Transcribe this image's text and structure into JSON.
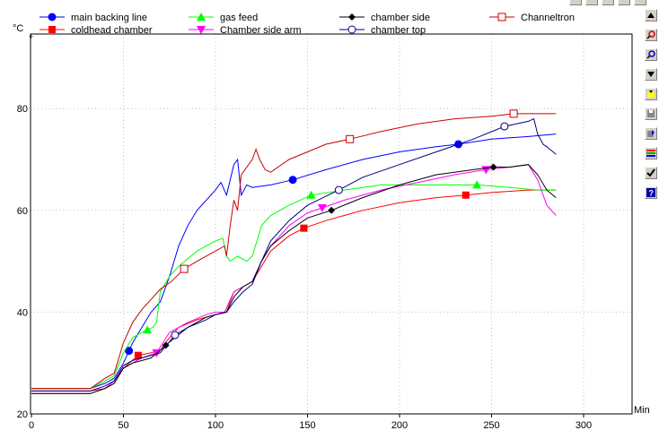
{
  "chart_data": {
    "type": "line",
    "ylabel": "°C",
    "xlabel": "Min",
    "xlim": [
      0,
      320
    ],
    "ylim": [
      20,
      94
    ],
    "xticks": [
      0,
      50,
      100,
      150,
      200,
      250,
      300
    ],
    "yticks": [
      20,
      40,
      60,
      80
    ],
    "grid": true,
    "legend_position": "top",
    "series": [
      {
        "name": "main backing line",
        "color": "#0000ff",
        "marker": "circle-filled",
        "markers_x": [
          53,
          142,
          232
        ],
        "points": [
          [
            0,
            25
          ],
          [
            32,
            25
          ],
          [
            40,
            26
          ],
          [
            45,
            27
          ],
          [
            50,
            30
          ],
          [
            55,
            34
          ],
          [
            60,
            37
          ],
          [
            65,
            40
          ],
          [
            70,
            42
          ],
          [
            75,
            47
          ],
          [
            80,
            53
          ],
          [
            85,
            57
          ],
          [
            90,
            60
          ],
          [
            95,
            62
          ],
          [
            100,
            64
          ],
          [
            103,
            65.5
          ],
          [
            106,
            63
          ],
          [
            110,
            69
          ],
          [
            112,
            70
          ],
          [
            114,
            63
          ],
          [
            117,
            65
          ],
          [
            120,
            64.5
          ],
          [
            130,
            65
          ],
          [
            142,
            66
          ],
          [
            160,
            68
          ],
          [
            180,
            70
          ],
          [
            200,
            71.5
          ],
          [
            220,
            72.5
          ],
          [
            232,
            73
          ],
          [
            250,
            74
          ],
          [
            270,
            74.5
          ],
          [
            285,
            75
          ]
        ]
      },
      {
        "name": "coldhead chamber",
        "color": "#ff0000",
        "marker": "square-filled",
        "markers_x": [
          58,
          148,
          236
        ],
        "points": [
          [
            0,
            24.5
          ],
          [
            32,
            24.5
          ],
          [
            40,
            25
          ],
          [
            45,
            26
          ],
          [
            50,
            29
          ],
          [
            58,
            31.5
          ],
          [
            65,
            32
          ],
          [
            70,
            32.5
          ],
          [
            75,
            35
          ],
          [
            80,
            37
          ],
          [
            90,
            38.5
          ],
          [
            100,
            39.5
          ],
          [
            105,
            40
          ],
          [
            110,
            44
          ],
          [
            115,
            45
          ],
          [
            120,
            46
          ],
          [
            125,
            49
          ],
          [
            130,
            52
          ],
          [
            140,
            55
          ],
          [
            148,
            56.5
          ],
          [
            160,
            58
          ],
          [
            180,
            60
          ],
          [
            200,
            61.5
          ],
          [
            220,
            62.5
          ],
          [
            236,
            63
          ],
          [
            250,
            63.5
          ],
          [
            270,
            64
          ],
          [
            285,
            64
          ]
        ]
      },
      {
        "name": "gas feed",
        "color": "#00ff00",
        "marker": "triangle-up-filled",
        "markers_x": [
          63,
          152,
          242
        ],
        "points": [
          [
            0,
            25
          ],
          [
            32,
            25
          ],
          [
            40,
            26.5
          ],
          [
            45,
            27.5
          ],
          [
            50,
            32
          ],
          [
            55,
            35
          ],
          [
            60,
            36
          ],
          [
            63,
            36.5
          ],
          [
            66,
            37
          ],
          [
            68,
            38
          ],
          [
            70,
            44
          ],
          [
            75,
            47
          ],
          [
            80,
            49
          ],
          [
            90,
            52
          ],
          [
            100,
            54
          ],
          [
            104,
            54.5
          ],
          [
            106,
            51
          ],
          [
            108,
            50
          ],
          [
            112,
            51
          ],
          [
            117,
            50
          ],
          [
            120,
            51
          ],
          [
            125,
            57
          ],
          [
            130,
            59
          ],
          [
            140,
            61
          ],
          [
            152,
            63
          ],
          [
            170,
            64
          ],
          [
            190,
            65
          ],
          [
            210,
            65
          ],
          [
            230,
            65
          ],
          [
            242,
            65
          ],
          [
            260,
            64.5
          ],
          [
            275,
            64
          ],
          [
            285,
            64
          ]
        ]
      },
      {
        "name": "Chamber side arm",
        "color": "#ff00ff",
        "marker": "triangle-down-filled",
        "markers_x": [
          68,
          158,
          247
        ],
        "points": [
          [
            0,
            24
          ],
          [
            32,
            24
          ],
          [
            40,
            25
          ],
          [
            45,
            26.5
          ],
          [
            50,
            29
          ],
          [
            55,
            30
          ],
          [
            60,
            31
          ],
          [
            68,
            32
          ],
          [
            75,
            36
          ],
          [
            85,
            38
          ],
          [
            95,
            39.5
          ],
          [
            100,
            40
          ],
          [
            106,
            40
          ],
          [
            110,
            44
          ],
          [
            115,
            45
          ],
          [
            120,
            46
          ],
          [
            125,
            50
          ],
          [
            130,
            53
          ],
          [
            140,
            57
          ],
          [
            150,
            59.5
          ],
          [
            158,
            60.5
          ],
          [
            170,
            62
          ],
          [
            190,
            64
          ],
          [
            210,
            65.5
          ],
          [
            230,
            67
          ],
          [
            247,
            68
          ],
          [
            260,
            68.5
          ],
          [
            270,
            69
          ],
          [
            275,
            66
          ],
          [
            280,
            61
          ],
          [
            285,
            59
          ]
        ]
      },
      {
        "name": "chamber side",
        "color": "#000000",
        "marker": "diamond-filled",
        "markers_x": [
          73,
          163,
          251
        ],
        "points": [
          [
            0,
            24
          ],
          [
            32,
            24
          ],
          [
            40,
            25
          ],
          [
            45,
            26
          ],
          [
            50,
            29
          ],
          [
            55,
            30
          ],
          [
            60,
            30.5
          ],
          [
            65,
            31
          ],
          [
            70,
            32.5
          ],
          [
            73,
            33.5
          ],
          [
            78,
            35
          ],
          [
            85,
            37
          ],
          [
            95,
            39
          ],
          [
            100,
            39.5
          ],
          [
            106,
            40
          ],
          [
            110,
            43
          ],
          [
            115,
            45
          ],
          [
            120,
            46
          ],
          [
            125,
            50
          ],
          [
            130,
            53
          ],
          [
            140,
            56
          ],
          [
            150,
            58.5
          ],
          [
            163,
            60
          ],
          [
            180,
            62.5
          ],
          [
            200,
            65
          ],
          [
            220,
            67
          ],
          [
            240,
            68
          ],
          [
            251,
            68.5
          ],
          [
            260,
            68.5
          ],
          [
            270,
            69
          ],
          [
            275,
            67
          ],
          [
            280,
            64
          ],
          [
            285,
            62.5
          ]
        ]
      },
      {
        "name": "chamber top",
        "color": "#000080",
        "marker": "circle-open",
        "markers_x": [
          78,
          167,
          257
        ],
        "points": [
          [
            0,
            24.5
          ],
          [
            32,
            24.5
          ],
          [
            40,
            25.5
          ],
          [
            45,
            26.5
          ],
          [
            50,
            29.5
          ],
          [
            55,
            30.5
          ],
          [
            60,
            31
          ],
          [
            70,
            32
          ],
          [
            78,
            35.5
          ],
          [
            85,
            37
          ],
          [
            95,
            38.5
          ],
          [
            100,
            39.5
          ],
          [
            106,
            40
          ],
          [
            110,
            42
          ],
          [
            115,
            44
          ],
          [
            120,
            45.5
          ],
          [
            125,
            50
          ],
          [
            130,
            54
          ],
          [
            140,
            58
          ],
          [
            150,
            61
          ],
          [
            167,
            64
          ],
          [
            180,
            66.5
          ],
          [
            200,
            69
          ],
          [
            220,
            71.5
          ],
          [
            240,
            74
          ],
          [
            257,
            76.5
          ],
          [
            270,
            77.5
          ],
          [
            273,
            78
          ],
          [
            275,
            75
          ],
          [
            278,
            73
          ],
          [
            280,
            72.5
          ],
          [
            285,
            71
          ]
        ]
      },
      {
        "name": "Channeltron",
        "color": "#cc0000",
        "marker": "square-open",
        "markers_x": [
          83,
          173,
          262
        ],
        "points": [
          [
            0,
            25
          ],
          [
            32,
            25
          ],
          [
            40,
            27
          ],
          [
            45,
            28
          ],
          [
            50,
            34
          ],
          [
            55,
            38
          ],
          [
            60,
            40.5
          ],
          [
            65,
            42.5
          ],
          [
            70,
            44.5
          ],
          [
            76,
            46
          ],
          [
            83,
            48.5
          ],
          [
            90,
            50
          ],
          [
            100,
            52
          ],
          [
            105,
            53
          ],
          [
            106,
            51
          ],
          [
            108,
            57
          ],
          [
            110,
            62
          ],
          [
            112,
            60
          ],
          [
            114,
            67
          ],
          [
            116,
            68
          ],
          [
            120,
            70
          ],
          [
            122,
            72
          ],
          [
            124,
            70
          ],
          [
            127,
            68
          ],
          [
            130,
            67.5
          ],
          [
            140,
            70
          ],
          [
            160,
            73
          ],
          [
            173,
            74
          ],
          [
            190,
            75.5
          ],
          [
            210,
            77
          ],
          [
            230,
            78
          ],
          [
            250,
            78.5
          ],
          [
            262,
            79
          ],
          [
            275,
            79
          ],
          [
            285,
            79
          ]
        ]
      }
    ]
  }
}
